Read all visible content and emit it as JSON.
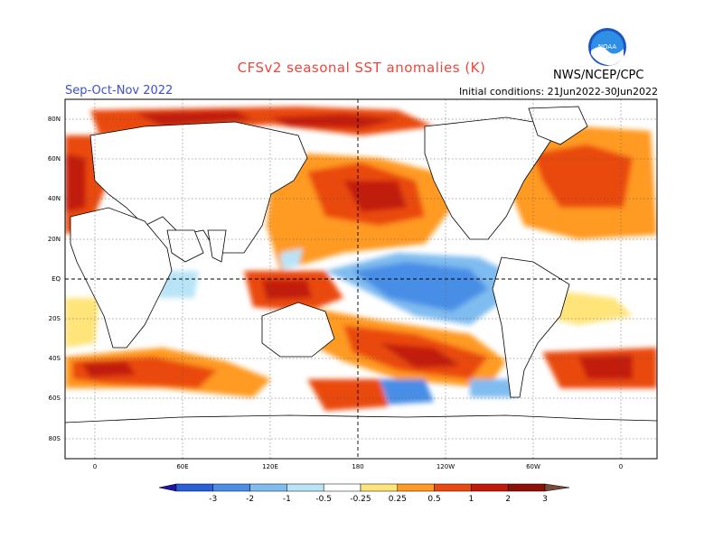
{
  "header": {
    "title": "CFSv2 seasonal SST anomalies (K)",
    "season": "Sep-Oct-Nov 2022",
    "initial_conditions": "Initial conditions: 21Jun2022-30Jun2022",
    "agency": "NWS/NCEP/CPC",
    "logo_text": "NOAA"
  },
  "map": {
    "lat_labels": [
      "80N",
      "60N",
      "40N",
      "20N",
      "EQ",
      "20S",
      "40S",
      "60S",
      "80S"
    ],
    "lon_labels": [
      "0",
      "60E",
      "120E",
      "180",
      "120W",
      "60W",
      "0"
    ]
  },
  "colorbar": {
    "labels": [
      "-3",
      "-2",
      "-1",
      "-0.5",
      "-0.25",
      "0.25",
      "0.5",
      "1",
      "2",
      "3"
    ],
    "colors": [
      "#1f14a6",
      "#2a5fd8",
      "#4a8ee6",
      "#7fbcf0",
      "#b9e4f7",
      "#ffffff",
      "#ffe47a",
      "#ff9a22",
      "#ea4a10",
      "#c21a0a",
      "#8c0f08",
      "#7a4a3a"
    ]
  }
}
